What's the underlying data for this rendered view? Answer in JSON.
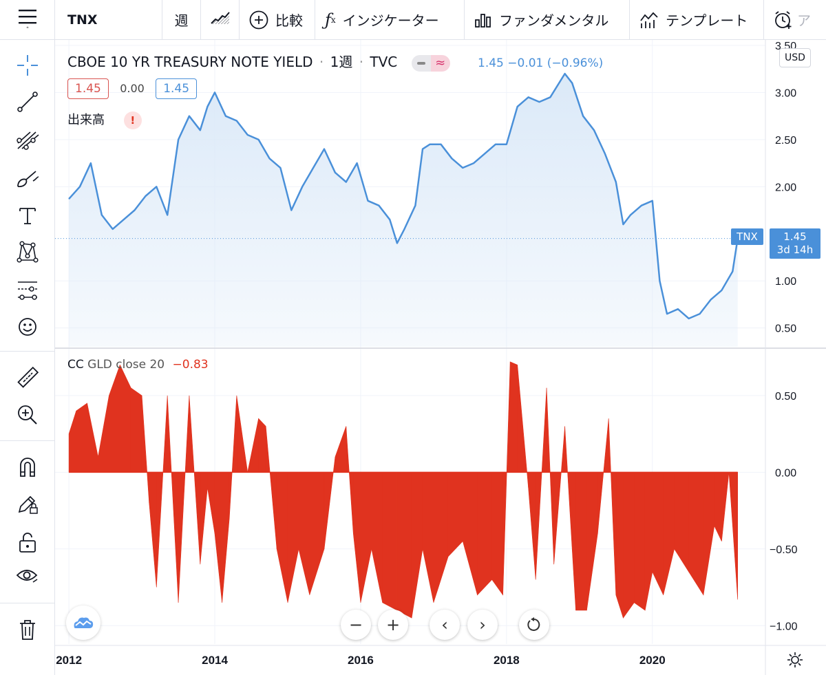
{
  "toolbar": {
    "symbol": "TNX",
    "interval": "週",
    "compare_label": "比較",
    "indicators_label": "インジケーター",
    "fundamentals_label": "ファンダメンタル",
    "templates_label": "テンプレート",
    "alert_label": "ア"
  },
  "legend": {
    "title": "CBOE 10 YR TREASURY NOTE YIELD",
    "interval": "1週",
    "source": "TVC",
    "quote": "1.45 −0.01 (−0.96%)",
    "bid": "1.45",
    "spread": "0.00",
    "ask": "1.45",
    "volume_label": "出来高",
    "volume_warning": "!"
  },
  "indicator_legend": {
    "name": "CC",
    "params": "GLD close 20",
    "value": "−0.83"
  },
  "price_scale": {
    "currency": "USD",
    "last_price": "1.45",
    "countdown": "3d 14h",
    "symbol_tag": "TNX"
  },
  "colors": {
    "line": "#4a90d9",
    "fill": "#dbe9f8",
    "indicator": "#e0331f",
    "bid_box": "#d9534f",
    "ask_box": "#4a90d9"
  },
  "chart_data": [
    {
      "type": "area",
      "title": "CBOE 10 YR TREASURY NOTE YIELD",
      "x": [
        2012.0,
        2012.15,
        2012.3,
        2012.45,
        2012.6,
        2012.75,
        2012.9,
        2013.05,
        2013.2,
        2013.35,
        2013.5,
        2013.65,
        2013.8,
        2013.9,
        2014.0,
        2014.15,
        2014.3,
        2014.45,
        2014.6,
        2014.75,
        2014.9,
        2015.05,
        2015.2,
        2015.35,
        2015.5,
        2015.65,
        2015.8,
        2015.95,
        2016.1,
        2016.25,
        2016.4,
        2016.5,
        2016.6,
        2016.75,
        2016.85,
        2016.95,
        2017.1,
        2017.25,
        2017.4,
        2017.55,
        2017.7,
        2017.85,
        2018.0,
        2018.15,
        2018.3,
        2018.45,
        2018.6,
        2018.8,
        2018.9,
        2019.05,
        2019.2,
        2019.35,
        2019.5,
        2019.6,
        2019.7,
        2019.85,
        2020.0,
        2020.1,
        2020.2,
        2020.35,
        2020.5,
        2020.65,
        2020.8,
        2020.95,
        2021.1,
        2021.17
      ],
      "values": [
        1.87,
        2.0,
        2.25,
        1.7,
        1.55,
        1.65,
        1.75,
        1.9,
        2.0,
        1.7,
        2.5,
        2.75,
        2.6,
        2.85,
        3.0,
        2.75,
        2.7,
        2.55,
        2.5,
        2.3,
        2.2,
        1.75,
        2.0,
        2.2,
        2.4,
        2.15,
        2.05,
        2.25,
        1.85,
        1.8,
        1.65,
        1.4,
        1.55,
        1.8,
        2.4,
        2.45,
        2.45,
        2.3,
        2.2,
        2.25,
        2.35,
        2.45,
        2.45,
        2.85,
        2.95,
        2.9,
        2.95,
        3.2,
        3.1,
        2.75,
        2.6,
        2.35,
        2.05,
        1.6,
        1.7,
        1.8,
        1.85,
        1.0,
        0.65,
        0.7,
        0.6,
        0.65,
        0.8,
        0.9,
        1.1,
        1.45
      ],
      "ylim": [
        0.3,
        3.5
      ],
      "yticks": [
        "3.50",
        "3.00",
        "2.50",
        "2.00",
        "1.00",
        "0.50"
      ],
      "series_name": "TNX"
    },
    {
      "type": "area",
      "title": "CC GLD close 20",
      "x": [
        2012.0,
        2012.1,
        2012.25,
        2012.4,
        2012.55,
        2012.7,
        2012.85,
        2013.0,
        2013.1,
        2013.2,
        2013.35,
        2013.5,
        2013.65,
        2013.8,
        2013.9,
        2014.0,
        2014.1,
        2014.2,
        2014.3,
        2014.45,
        2014.6,
        2014.7,
        2014.85,
        2015.0,
        2015.15,
        2015.3,
        2015.5,
        2015.65,
        2015.8,
        2015.9,
        2016.0,
        2016.15,
        2016.3,
        2016.5,
        2016.7,
        2016.85,
        2017.0,
        2017.2,
        2017.4,
        2017.6,
        2017.8,
        2017.95,
        2018.05,
        2018.15,
        2018.3,
        2018.4,
        2018.55,
        2018.65,
        2018.8,
        2018.95,
        2019.1,
        2019.25,
        2019.4,
        2019.5,
        2019.6,
        2019.75,
        2019.9,
        2020.0,
        2020.15,
        2020.3,
        2020.5,
        2020.7,
        2020.85,
        2020.95,
        2021.05,
        2021.17
      ],
      "values": [
        0.25,
        0.4,
        0.45,
        0.1,
        0.5,
        0.7,
        0.55,
        0.5,
        -0.2,
        -0.75,
        0.5,
        -0.85,
        0.5,
        -0.6,
        -0.1,
        -0.4,
        -0.85,
        -0.3,
        0.5,
        0.0,
        0.35,
        0.3,
        -0.5,
        -0.85,
        -0.5,
        -0.8,
        -0.5,
        0.1,
        0.3,
        -0.4,
        -0.85,
        -0.5,
        -0.85,
        -0.9,
        -0.95,
        -0.5,
        -0.85,
        -0.55,
        -0.45,
        -0.8,
        -0.7,
        -0.8,
        0.72,
        0.7,
        -0.1,
        -0.7,
        0.55,
        -0.6,
        0.3,
        -0.9,
        -0.9,
        -0.4,
        0.35,
        -0.8,
        -0.95,
        -0.85,
        -0.9,
        -0.65,
        -0.8,
        -0.5,
        -0.65,
        -0.8,
        -0.35,
        -0.45,
        0.0,
        -0.83
      ],
      "ylim": [
        -1.12,
        0.8
      ],
      "yticks": [
        "0.50",
        "0.00",
        "-0.50",
        "-1.00"
      ]
    }
  ],
  "time_axis": [
    "2012",
    "2014",
    "2016",
    "2018",
    "2020"
  ]
}
